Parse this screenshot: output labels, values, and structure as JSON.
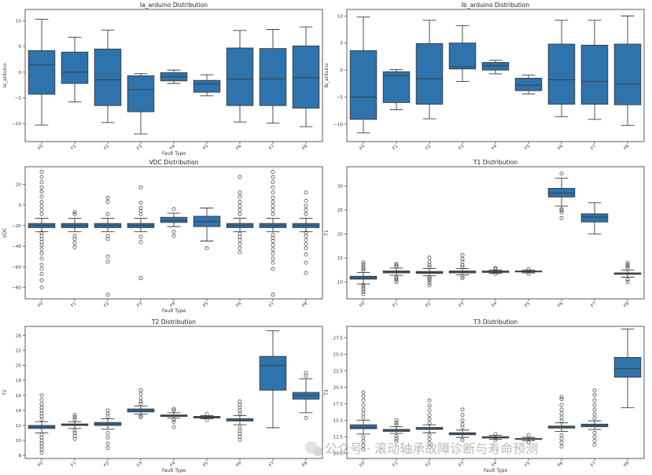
{
  "chart_data": [
    {
      "type": "box",
      "title": "Ia_arduino Distribution",
      "xlabel": "Fault Type",
      "ylabel": "Ia_arduino",
      "categories": [
        "F0",
        "F1",
        "F2",
        "F3",
        "F4",
        "F5",
        "F6",
        "F7",
        "F8"
      ],
      "ylim": [
        -13.5,
        12.2
      ],
      "yticks": [
        -10,
        -5,
        0,
        5,
        10
      ],
      "box_color": "#2e73ac",
      "boxes": [
        {
          "low": -10.3,
          "q1": -4.3,
          "median": 1.4,
          "q3": 4.2,
          "high": 10.3,
          "outliers": []
        },
        {
          "low": -5.8,
          "q1": -2.2,
          "median": 0.0,
          "q3": 3.9,
          "high": 6.8,
          "outliers": []
        },
        {
          "low": -9.8,
          "q1": -6.5,
          "median": -1.5,
          "q3": 4.5,
          "high": 8.2,
          "outliers": []
        },
        {
          "low": -12.0,
          "q1": -7.7,
          "median": -3.4,
          "q3": -0.7,
          "high": -0.3,
          "outliers": []
        },
        {
          "low": -2.2,
          "q1": -1.7,
          "median": -0.9,
          "q3": -0.1,
          "high": 0.4,
          "outliers": []
        },
        {
          "low": -4.6,
          "q1": -3.9,
          "median": -2.3,
          "q3": -1.6,
          "high": -0.5,
          "outliers": []
        },
        {
          "low": -9.7,
          "q1": -6.5,
          "median": -1.4,
          "q3": 4.7,
          "high": 8.1,
          "outliers": []
        },
        {
          "low": -9.9,
          "q1": -6.5,
          "median": -1.3,
          "q3": 4.6,
          "high": 8.3,
          "outliers": []
        },
        {
          "low": -10.6,
          "q1": -7.0,
          "median": -1.1,
          "q3": 5.1,
          "high": 8.8,
          "outliers": []
        }
      ]
    },
    {
      "type": "box",
      "title": "Ib_arduino Distribution",
      "xlabel": "",
      "ylabel": "Ib_arduino",
      "categories": [
        "F0",
        "F1",
        "F2",
        "F3",
        "F4",
        "F5",
        "F6",
        "F7",
        "F8"
      ],
      "ylim": [
        -13.2,
        11.2
      ],
      "yticks": [
        -10,
        -5,
        0,
        5,
        10
      ],
      "box_color": "#2e73ac",
      "boxes": [
        {
          "low": -11.6,
          "q1": -9.1,
          "median": -5.0,
          "q3": 3.6,
          "high": 9.8,
          "outliers": []
        },
        {
          "low": -7.3,
          "q1": -6.0,
          "median": -1.0,
          "q3": -0.3,
          "high": 0.1,
          "outliers": []
        },
        {
          "low": -9.0,
          "q1": -6.3,
          "median": -1.6,
          "q3": 4.9,
          "high": 9.2,
          "outliers": []
        },
        {
          "low": -2.1,
          "q1": 0.2,
          "median": 0.6,
          "q3": 5.0,
          "high": 8.2,
          "outliers": []
        },
        {
          "low": -0.7,
          "q1": 0.0,
          "median": 0.8,
          "q3": 1.4,
          "high": 1.8,
          "outliers": []
        },
        {
          "low": -4.4,
          "q1": -3.8,
          "median": -2.8,
          "q3": -1.5,
          "high": -0.9,
          "outliers": []
        },
        {
          "low": -8.6,
          "q1": -6.3,
          "median": -1.8,
          "q3": 4.8,
          "high": 9.2,
          "outliers": []
        },
        {
          "low": -9.1,
          "q1": -6.3,
          "median": -2.1,
          "q3": 4.6,
          "high": 9.2,
          "outliers": []
        },
        {
          "low": -10.2,
          "q1": -6.4,
          "median": -2.6,
          "q3": 4.8,
          "high": 10.0,
          "outliers": []
        }
      ]
    },
    {
      "type": "box",
      "title": "VDC Distribution",
      "xlabel": "Fault Type",
      "ylabel": "VDC",
      "categories": [
        "F0",
        "F1",
        "F2",
        "F3",
        "F4",
        "F5",
        "F6",
        "F7",
        "F8"
      ],
      "ylim": [
        -91,
        37
      ],
      "yticks": [
        -80,
        -60,
        -40,
        -20,
        0,
        20
      ],
      "box_color": "#2e73ac",
      "boxes": [
        {
          "low": -26,
          "q1": -22,
          "median": -20,
          "q3": -18,
          "high": -13,
          "outliers": [
            -80,
            -73,
            -67,
            -62,
            -58,
            -52,
            -47,
            -43,
            -39,
            -36,
            -33,
            -30,
            -27,
            -9,
            -5,
            -1,
            3,
            8,
            13,
            17,
            22,
            27,
            32
          ]
        },
        {
          "low": -26,
          "q1": -22,
          "median": -20,
          "q3": -18,
          "high": -13,
          "outliers": [
            -41,
            -37,
            -33,
            -30,
            -9,
            -7
          ]
        },
        {
          "low": -26,
          "q1": -22,
          "median": -20,
          "q3": -18,
          "high": -13,
          "outliers": [
            -87,
            -55,
            -50,
            -33,
            -30,
            -9,
            3,
            7
          ]
        },
        {
          "low": -26,
          "q1": -22,
          "median": -20,
          "q3": -18,
          "high": -13,
          "outliers": [
            -71,
            -36,
            -31,
            -9,
            -6,
            -3,
            2,
            17
          ]
        },
        {
          "low": -21,
          "q1": -17,
          "median": -15,
          "q3": -12,
          "high": -8,
          "outliers": [
            -30,
            -26,
            -4
          ]
        },
        {
          "low": -35,
          "q1": -21,
          "median": -16,
          "q3": -11,
          "high": -3,
          "outliers": [
            -42
          ]
        },
        {
          "low": -26,
          "q1": -22,
          "median": -20,
          "q3": -18,
          "high": -13,
          "outliers": [
            -46,
            -42,
            -38,
            -34,
            -31,
            -28,
            -9,
            -5,
            -1,
            3,
            8,
            12,
            27
          ]
        },
        {
          "low": -26,
          "q1": -22,
          "median": -20,
          "q3": -18,
          "high": -13,
          "outliers": [
            -87,
            -62,
            -56,
            -52,
            -47,
            -43,
            -39,
            -35,
            -32,
            -29,
            -9,
            -5,
            -1,
            3,
            7,
            12,
            17,
            22,
            27,
            32
          ]
        },
        {
          "low": -26,
          "q1": -22,
          "median": -20,
          "q3": -18,
          "high": -13,
          "outliers": [
            -66,
            -56,
            -48,
            -42,
            -38,
            -34,
            -30,
            -27,
            -9,
            -5,
            -1,
            4,
            12
          ]
        }
      ]
    },
    {
      "type": "box",
      "title": "T1 Distribution",
      "xlabel": "",
      "ylabel": "T1",
      "categories": [
        "F0",
        "F1",
        "F2",
        "F3",
        "F4",
        "F5",
        "F6",
        "F7",
        "F8"
      ],
      "ylim": [
        6.5,
        34.0
      ],
      "yticks": [
        10,
        15,
        20,
        25,
        30
      ],
      "box_color": "#2e73ac",
      "boxes": [
        {
          "low": 9.6,
          "q1": 10.6,
          "median": 10.9,
          "q3": 11.2,
          "high": 12.0,
          "outliers": [
            7.5,
            8.0,
            8.5,
            9.0,
            9.4,
            12.4,
            12.8,
            13.2,
            13.7,
            14.1
          ]
        },
        {
          "low": 11.4,
          "q1": 11.9,
          "median": 12.1,
          "q3": 12.3,
          "high": 12.9,
          "outliers": [
            10.0,
            10.4,
            10.8,
            11.1,
            13.2,
            13.5,
            13.8
          ]
        },
        {
          "low": 11.3,
          "q1": 11.8,
          "median": 12.0,
          "q3": 12.2,
          "high": 12.8,
          "outliers": [
            9.3,
            9.8,
            10.3,
            10.7,
            11.0,
            13.1,
            13.5,
            14.2,
            15.1
          ]
        },
        {
          "low": 11.5,
          "q1": 11.9,
          "median": 12.1,
          "q3": 12.3,
          "high": 12.8,
          "outliers": [
            10.8,
            11.2,
            13.1,
            13.5,
            14.2,
            14.8,
            15.6
          ]
        },
        {
          "low": 11.8,
          "q1": 12.0,
          "median": 12.1,
          "q3": 12.3,
          "high": 12.5,
          "outliers": [
            11.7,
            12.7,
            12.9
          ]
        },
        {
          "low": 11.9,
          "q1": 12.1,
          "median": 12.2,
          "q3": 12.3,
          "high": 12.5,
          "outliers": [
            11.7,
            12.7
          ]
        },
        {
          "low": 25.8,
          "q1": 27.7,
          "median": 28.5,
          "q3": 29.5,
          "high": 31.6,
          "outliers": [
            23.3,
            24.5,
            24.9,
            25.2,
            32.6
          ]
        },
        {
          "low": 20.0,
          "q1": 22.5,
          "median": 23.5,
          "q3": 24.2,
          "high": 26.5,
          "outliers": []
        },
        {
          "low": 11.0,
          "q1": 11.6,
          "median": 11.8,
          "q3": 11.9,
          "high": 12.5,
          "outliers": [
            10.0,
            10.5,
            12.8,
            13.2,
            13.6,
            14.0
          ]
        }
      ]
    },
    {
      "type": "box",
      "title": "T2 Distribution",
      "xlabel": "Fault Type",
      "ylabel": "T2",
      "categories": [
        "F0",
        "F1",
        "F2",
        "F3",
        "F4",
        "F5",
        "F6",
        "F7",
        "F8"
      ],
      "ylim": [
        7.6,
        25.2
      ],
      "yticks": [
        8,
        10,
        12,
        14,
        16,
        18,
        20,
        22,
        24
      ],
      "box_color": "#2e73ac",
      "boxes": [
        {
          "low": 11.0,
          "q1": 11.6,
          "median": 11.8,
          "q3": 12.0,
          "high": 12.5,
          "outliers": [
            8.4,
            8.8,
            9.2,
            9.6,
            10.0,
            10.4,
            10.8,
            12.8,
            13.2,
            13.6,
            14.0,
            14.4,
            14.8,
            15.4,
            16.0
          ]
        },
        {
          "low": 11.6,
          "q1": 12.0,
          "median": 12.1,
          "q3": 12.2,
          "high": 12.5,
          "outliers": [
            10.2,
            10.6,
            11.0,
            11.3,
            12.8,
            13.1,
            13.4
          ]
        },
        {
          "low": 11.5,
          "q1": 12.0,
          "median": 12.2,
          "q3": 12.4,
          "high": 12.9,
          "outliers": [
            9.0,
            9.6,
            10.4,
            11.0,
            13.2,
            13.6,
            14.0
          ]
        },
        {
          "low": 13.5,
          "q1": 13.8,
          "median": 14.0,
          "q3": 14.2,
          "high": 14.6,
          "outliers": [
            13.1,
            13.3,
            14.9,
            15.2,
            15.6,
            16.2,
            16.7
          ]
        },
        {
          "low": 13.0,
          "q1": 13.2,
          "median": 13.3,
          "q3": 13.4,
          "high": 13.7,
          "outliers": [
            11.8,
            12.5,
            12.8,
            14.0,
            14.2
          ]
        },
        {
          "low": 12.9,
          "q1": 13.0,
          "median": 13.1,
          "q3": 13.2,
          "high": 13.3,
          "outliers": [
            12.7,
            13.5
          ]
        },
        {
          "low": 12.1,
          "q1": 12.6,
          "median": 12.7,
          "q3": 12.9,
          "high": 13.3,
          "outliers": [
            10.1,
            10.5,
            10.9,
            11.3,
            11.7,
            13.6,
            14.0,
            14.4,
            14.8,
            15.2
          ]
        },
        {
          "low": 11.7,
          "q1": 16.7,
          "median": 20.0,
          "q3": 21.2,
          "high": 24.6,
          "outliers": []
        },
        {
          "low": 13.7,
          "q1": 15.5,
          "median": 16.0,
          "q3": 16.4,
          "high": 18.2,
          "outliers": [
            13.0,
            18.6,
            19.0
          ]
        }
      ]
    },
    {
      "type": "box",
      "title": "T3 Distribution",
      "xlabel": "Fault Type",
      "ylabel": "T3",
      "categories": [
        "F0",
        "F1",
        "F2",
        "F3",
        "F4",
        "F5",
        "F6",
        "F7",
        "F8"
      ],
      "ylim": [
        9.2,
        29.2
      ],
      "yticks": [
        10.0,
        12.5,
        15.0,
        17.5,
        20.0,
        22.5,
        25.0,
        27.5
      ],
      "box_color": "#2e73ac",
      "boxes": [
        {
          "low": 12.9,
          "q1": 13.7,
          "median": 13.9,
          "q3": 14.3,
          "high": 15.0,
          "outliers": [
            10.6,
            11.2,
            11.8,
            12.4,
            15.4,
            16.0,
            16.6,
            17.3,
            18.0,
            18.6,
            19.2
          ]
        },
        {
          "low": 13.0,
          "q1": 13.3,
          "median": 13.5,
          "q3": 13.6,
          "high": 14.0,
          "outliers": [
            11.8,
            12.2,
            12.6,
            14.3,
            14.6,
            15.0
          ]
        },
        {
          "low": 13.1,
          "q1": 13.6,
          "median": 13.7,
          "q3": 13.9,
          "high": 14.3,
          "outliers": [
            10.9,
            11.5,
            12.1,
            12.7,
            14.6,
            15.2,
            15.8,
            16.5,
            17.2,
            18.0
          ]
        },
        {
          "low": 12.4,
          "q1": 12.8,
          "median": 12.9,
          "q3": 13.1,
          "high": 13.5,
          "outliers": [
            12.0,
            13.9,
            14.4,
            15.0,
            15.8,
            16.6
          ]
        },
        {
          "low": 12.1,
          "q1": 12.3,
          "median": 12.4,
          "q3": 12.5,
          "high": 12.7,
          "outliers": [
            12.0,
            12.9
          ]
        },
        {
          "low": 11.9,
          "q1": 12.1,
          "median": 12.2,
          "q3": 12.2,
          "high": 12.4,
          "outliers": [
            11.6,
            12.7
          ]
        },
        {
          "low": 13.3,
          "q1": 13.8,
          "median": 14.0,
          "q3": 14.1,
          "high": 14.6,
          "outliers": [
            11.0,
            11.6,
            12.2,
            12.7,
            14.9,
            15.4,
            16.0,
            16.6,
            17.3,
            18.2,
            18.5
          ]
        },
        {
          "low": 13.6,
          "q1": 14.0,
          "median": 14.2,
          "q3": 14.4,
          "high": 14.9,
          "outliers": [
            11.3,
            11.9,
            12.5,
            13.1,
            15.3,
            15.9,
            16.6,
            17.3,
            18.0,
            18.8,
            19.5
          ]
        },
        {
          "low": 16.9,
          "q1": 21.5,
          "median": 22.8,
          "q3": 24.5,
          "high": 28.8,
          "outliers": []
        }
      ]
    }
  ],
  "watermark": "公众号 · 滚动轴承故障诊断与寿命预测"
}
